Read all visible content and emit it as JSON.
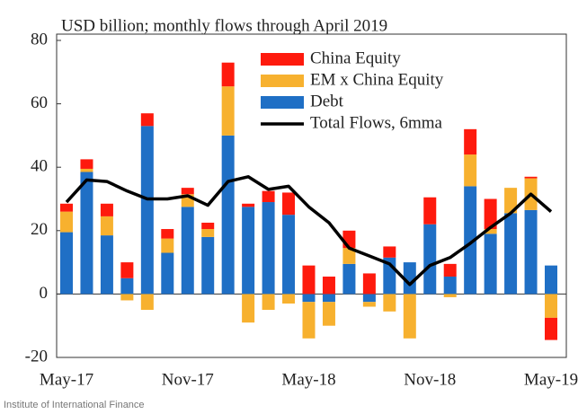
{
  "chart_data": {
    "type": "bar",
    "title": "USD billion; monthly flows through April 2019",
    "source": "Institute of International Finance",
    "categories": [
      "May-17",
      null,
      null,
      null,
      null,
      null,
      "Nov-17",
      null,
      null,
      null,
      null,
      null,
      "May-18",
      null,
      null,
      null,
      null,
      null,
      "Nov-18",
      null,
      null,
      null,
      null,
      null,
      "May-19"
    ],
    "series": [
      {
        "name": "China Equity",
        "color": "#fe1a0d",
        "stack": 2,
        "values": [
          2.5,
          3,
          4,
          5,
          4,
          3,
          2,
          2,
          7.5,
          1,
          3.5,
          7,
          9,
          5.5,
          5.5,
          6.5,
          3.5,
          0,
          8.5,
          4,
          8,
          9.5,
          0,
          0.5,
          -7
        ]
      },
      {
        "name": "EM x China Equity",
        "color": "#f7b12f",
        "stack": 1,
        "values": [
          6.5,
          1,
          6,
          -2,
          -5,
          4.5,
          4,
          2.5,
          15.5,
          -9,
          -5,
          -3,
          -11.5,
          -7.5,
          5,
          -1.5,
          -5.5,
          -14,
          0,
          -1,
          10,
          1.5,
          8,
          10,
          -7.5
        ]
      },
      {
        "name": "Debt",
        "color": "#1f6fc5",
        "stack": 0,
        "values": [
          19.5,
          38.5,
          18.5,
          5,
          53,
          13,
          27.5,
          18,
          50,
          27.5,
          29,
          25,
          -2.5,
          -2.5,
          9.5,
          -2.5,
          11.5,
          10,
          22,
          5.5,
          34,
          19,
          25.5,
          26.5,
          9
        ]
      },
      {
        "name": "Total Flows, 6mma",
        "color": "#000000",
        "type": "line",
        "values": [
          29,
          36,
          35.5,
          32.5,
          30,
          30,
          31,
          28,
          35.5,
          37,
          33,
          34,
          27.5,
          22.5,
          14.5,
          12,
          9.5,
          3,
          9,
          11.5,
          16,
          21,
          25.5,
          31.5,
          26
        ]
      }
    ],
    "ylim": [
      -20,
      80
    ],
    "yticks": [
      -20,
      0,
      20,
      40,
      60,
      80
    ],
    "legend": "top"
  }
}
